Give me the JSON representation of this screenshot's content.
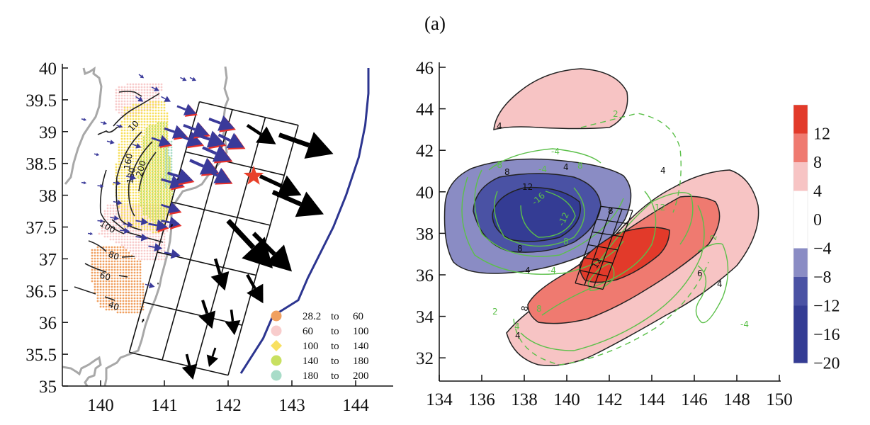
{
  "figure": {
    "panel_label": "(a)"
  },
  "chart_data": [
    {
      "type": "map",
      "name": "slip-and-displacement-map",
      "title": "",
      "xlabel": "",
      "ylabel": "",
      "xlim": [
        139.3,
        144.6
      ],
      "ylim": [
        35,
        40
      ],
      "xticks": [
        140,
        141,
        142,
        143,
        144
      ],
      "xtick_labels": [
        "140",
        "141",
        "142",
        "143",
        "144"
      ],
      "yticks": [
        35,
        35.5,
        36,
        36.5,
        37,
        37.5,
        38,
        38.5,
        39,
        39.5,
        40
      ],
      "ytick_labels": [
        "35",
        "35.5",
        "36",
        "36.5",
        "37",
        "37.5",
        "38",
        "38.5",
        "39",
        "39.5",
        "40"
      ],
      "contour_labels": [
        "40",
        "60",
        "80",
        "100",
        "10",
        "160",
        "180",
        "200"
      ],
      "legend": {
        "placement": "bottom-right",
        "entries": [
          {
            "from": "28.2",
            "sep": "to",
            "to": "60",
            "color": "#f0a060",
            "marker": "circle"
          },
          {
            "from": "60",
            "sep": "to",
            "to": "100",
            "color": "#f8cccc",
            "marker": "circle"
          },
          {
            "from": "100",
            "sep": "to",
            "to": "140",
            "color": "#f8e060",
            "marker": "diamond"
          },
          {
            "from": "140",
            "sep": "to",
            "to": "180",
            "color": "#c8e060",
            "marker": "circle"
          },
          {
            "from": "180",
            "sep": "to",
            "to": "200",
            "color": "#a8dcc8",
            "marker": "circle"
          }
        ]
      },
      "epicenter": {
        "lon": 142.4,
        "lat": 38.3,
        "color": "#e8402a"
      },
      "trench": [
        [
          142.2,
          35.2
        ],
        [
          142.55,
          35.75
        ],
        [
          142.7,
          36.1
        ],
        [
          143.1,
          36.35
        ],
        [
          143.25,
          36.7
        ],
        [
          143.4,
          37
        ],
        [
          143.65,
          37.5
        ],
        [
          143.85,
          38
        ],
        [
          144.05,
          38.6
        ],
        [
          144.15,
          39.1
        ],
        [
          144.2,
          39.6
        ],
        [
          144.2,
          40
        ]
      ],
      "fault_grid": {
        "corners": [
          [
            140.45,
            35.53
          ],
          [
            142.0,
            35.17
          ],
          [
            143.1,
            39.1
          ],
          [
            141.55,
            39.47
          ]
        ],
        "rows": 5,
        "cols": 3
      },
      "observed_vectors": [
        [
          139.7,
          39.2,
          0.08,
          -0.02
        ],
        [
          140.0,
          39.15,
          0.1,
          -0.03
        ],
        [
          140.25,
          39.1,
          0.1,
          -0.03
        ],
        [
          139.7,
          38.2,
          0.08,
          -0.01
        ],
        [
          139.95,
          38.15,
          0.1,
          -0.01
        ],
        [
          140.2,
          38.2,
          0.12,
          -0.02
        ],
        [
          139.9,
          38.65,
          0.08,
          -0.02
        ],
        [
          140.1,
          38.85,
          0.12,
          -0.03
        ],
        [
          140.5,
          38.8,
          0.14,
          -0.05
        ],
        [
          140.2,
          37.9,
          0.14,
          -0.03
        ],
        [
          140.4,
          38.3,
          0.16,
          -0.04
        ],
        [
          139.8,
          37.4,
          0.08,
          -0.01
        ],
        [
          139.95,
          37.6,
          0.1,
          -0.01
        ],
        [
          140.15,
          37.65,
          0.14,
          -0.02
        ],
        [
          140.35,
          37.55,
          0.16,
          -0.02
        ],
        [
          140.55,
          37.6,
          0.2,
          -0.03
        ],
        [
          140.75,
          37.55,
          0.3,
          -0.05
        ],
        [
          140.95,
          37.6,
          0.3,
          -0.06
        ],
        [
          140.3,
          37.45,
          0.16,
          -0.02
        ],
        [
          140.55,
          37.35,
          0.2,
          -0.03
        ],
        [
          140.75,
          37.2,
          0.22,
          -0.04
        ],
        [
          141.0,
          37.1,
          0.25,
          -0.05
        ],
        [
          140.7,
          36.6,
          0.15,
          -0.04
        ],
        [
          140.95,
          38.25,
          0.35,
          -0.1
        ],
        [
          140.95,
          37.85,
          0.3,
          -0.1
        ],
        [
          141.05,
          38.35,
          0.4,
          -0.12
        ],
        [
          140.8,
          38.9,
          0.3,
          -0.1
        ],
        [
          141.0,
          39.05,
          0.35,
          -0.12
        ],
        [
          141.2,
          38.95,
          0.4,
          -0.15
        ],
        [
          141.3,
          39.1,
          0.4,
          -0.15
        ],
        [
          141.5,
          38.95,
          0.45,
          -0.15
        ],
        [
          141.6,
          38.75,
          0.45,
          -0.2
        ],
        [
          141.4,
          38.55,
          0.45,
          -0.2
        ],
        [
          141.7,
          39.2,
          0.4,
          -0.15
        ],
        [
          141.2,
          39.4,
          0.3,
          -0.12
        ],
        [
          140.95,
          39.55,
          0.15,
          -0.08
        ],
        [
          140.8,
          39.7,
          0.12,
          -0.06
        ],
        [
          140.55,
          39.55,
          0.12,
          -0.08
        ],
        [
          140.6,
          39.9,
          0.08,
          -0.06
        ],
        [
          141.25,
          39.85,
          0.1,
          -0.05
        ],
        [
          141.4,
          39.85,
          0.1,
          -0.05
        ],
        [
          141.65,
          38.4,
          0.4,
          -0.2
        ],
        [
          141.85,
          38.95,
          0.4,
          -0.2
        ]
      ],
      "model_vectors": [
        [
          142.3,
          39.1,
          0.45,
          -0.3
        ],
        [
          142.8,
          38.95,
          0.85,
          -0.3
        ],
        [
          142.5,
          38.3,
          0.65,
          -0.3
        ],
        [
          142.7,
          38.05,
          0.8,
          -0.35
        ],
        [
          142.0,
          37.6,
          0.7,
          -0.75
        ],
        [
          142.4,
          37.4,
          0.6,
          -0.6
        ],
        [
          141.8,
          37.0,
          0.15,
          -0.5
        ],
        [
          142.3,
          36.75,
          0.25,
          -0.45
        ],
        [
          141.6,
          36.35,
          0.15,
          -0.45
        ],
        [
          142.05,
          36.2,
          0.05,
          -0.4
        ],
        [
          141.35,
          35.5,
          0.1,
          -0.4
        ],
        [
          141.8,
          35.6,
          -0.1,
          -0.3
        ],
        [
          141.1,
          37.5,
          0.03,
          0.05
        ],
        [
          140.9,
          36.6,
          0.0,
          0.03
        ],
        [
          140.65,
          36.0,
          0.03,
          0.06
        ]
      ]
    },
    {
      "type": "contour",
      "name": "deformation-contour-map",
      "title": "",
      "xlabel": "",
      "ylabel": "",
      "xlim": [
        134,
        150
      ],
      "ylim": [
        31,
        46.5
      ],
      "xticks": [
        134,
        136,
        138,
        140,
        142,
        144,
        146,
        148,
        150
      ],
      "xtick_labels": [
        "134",
        "136",
        "138",
        "140",
        "142",
        "144",
        "146",
        "148",
        "150"
      ],
      "yticks": [
        32,
        34,
        36,
        38,
        40,
        42,
        44,
        46
      ],
      "ytick_labels": [
        "32",
        "34",
        "36",
        "38",
        "40",
        "42",
        "44",
        "46"
      ],
      "black_contour_labels": [
        "4",
        "4",
        "8",
        "12",
        "8",
        "4",
        "4",
        "8",
        "12",
        "6",
        "4",
        "8",
        "4"
      ],
      "green_contour_labels": [
        "2",
        "-4",
        "-8",
        "-16",
        "-12",
        "8",
        "-4",
        "-4",
        "8",
        "2",
        "2",
        "8",
        "4",
        "-4",
        "12"
      ],
      "colorbar": {
        "levels": [
          "12",
          "8",
          "4",
          "0",
          "−4",
          "−8",
          "−12",
          "−16",
          "−20"
        ],
        "bands": [
          "#e23a2a",
          "#ef7a70",
          "#f7c4c4",
          "#ffffff",
          "#ffffff",
          "#8a8cc4",
          "#4a52a4",
          "#343c94",
          "#343c94"
        ]
      },
      "colors": {
        "neg1": "#8a8cc4",
        "neg2": "#4a52a4",
        "neg3": "#343c94",
        "pos1": "#f7c4c4",
        "pos2": "#ef7a70",
        "pos3": "#e23a2a",
        "green": "#5cc04a"
      }
    }
  ]
}
